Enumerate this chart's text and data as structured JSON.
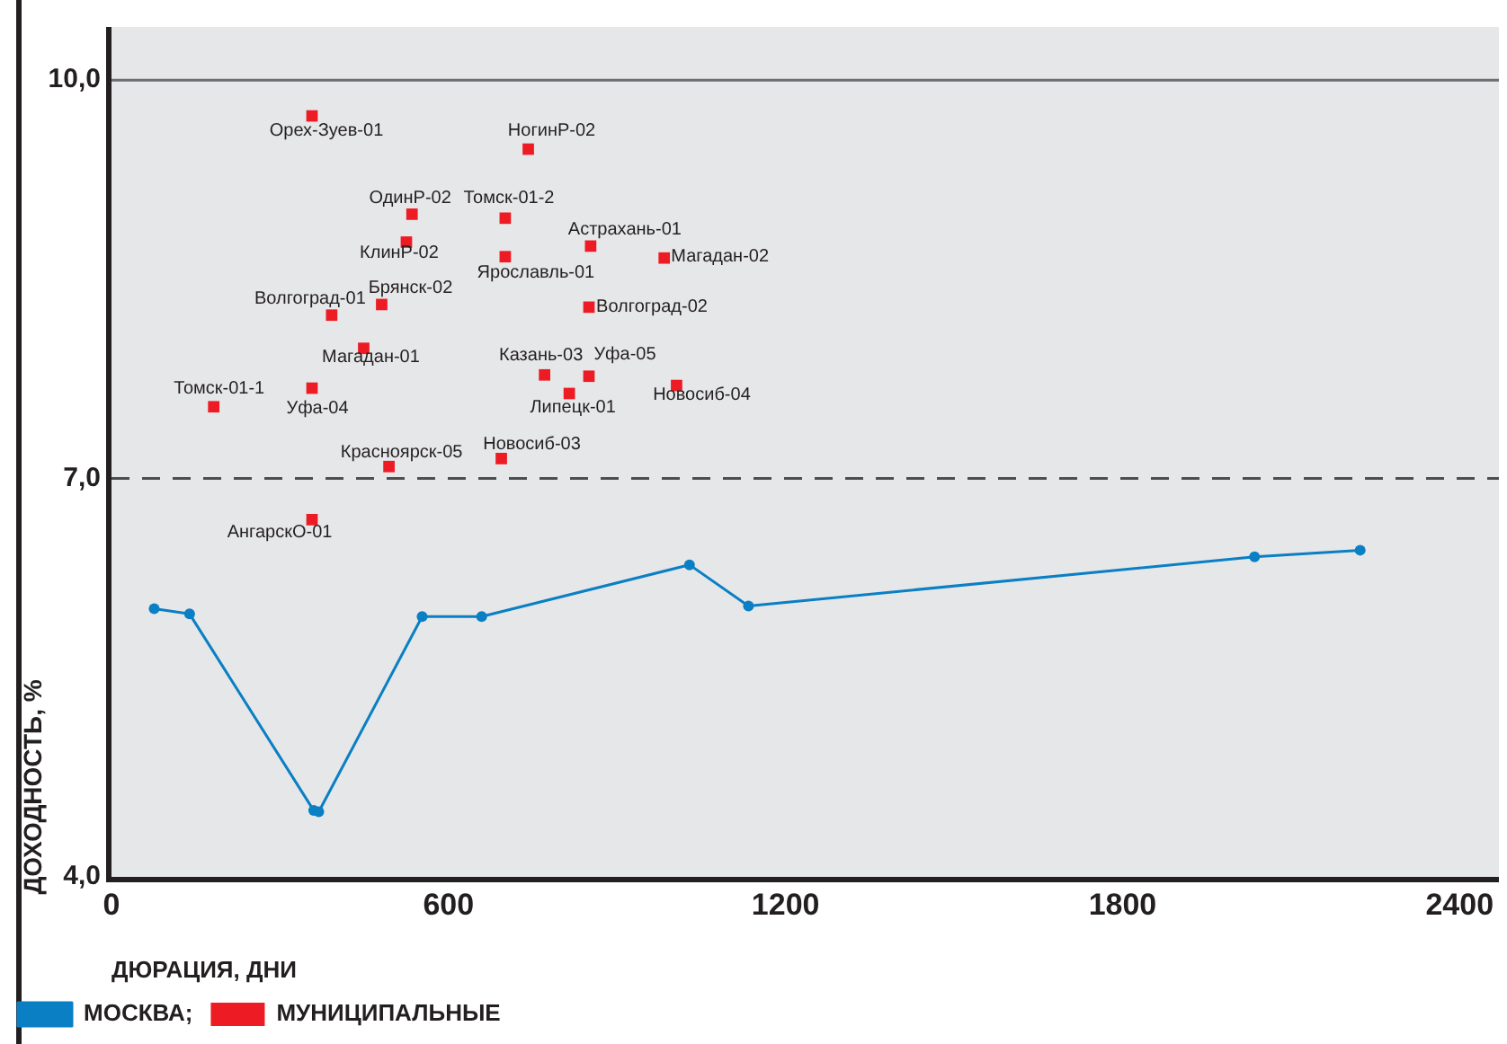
{
  "chart_data": {
    "type": "scatter",
    "xlabel": "ДЮРАЦИЯ, ДНИ",
    "ylabel": "ДОХОДНОСТЬ, %",
    "xlim": [
      0,
      2470
    ],
    "xticks": [
      0,
      600,
      1200,
      1800,
      2400
    ],
    "ylim": [
      4,
      10.4
    ],
    "yticks": [
      {
        "value": 4,
        "label": "4,0"
      },
      {
        "value": 7,
        "label": "7,0"
      },
      {
        "value": 10,
        "label": "10,0"
      }
    ],
    "grid": false,
    "legend": "bottom",
    "ref_lines": [
      {
        "axis": "y",
        "value": 10,
        "color": "#6d6e71",
        "line_style": "solid"
      },
      {
        "axis": "y",
        "value": 7,
        "color": "#4d4d4f",
        "line_style": "dashed"
      }
    ],
    "series": [
      {
        "name": "МОСКВА;",
        "type": "line",
        "color": "#0a7fc4",
        "marker": "circle",
        "line_style": "solid",
        "x": [
          76,
          139,
          360,
          369,
          553,
          659,
          1029,
          1134,
          2035,
          2223
        ],
        "values": [
          6.02,
          5.98,
          4.5,
          4.49,
          5.96,
          5.96,
          6.35,
          6.04,
          6.41,
          6.46
        ]
      },
      {
        "name": "МУНИЦИПАЛЬНЫЕ",
        "color": "#ed1c24",
        "marker": "square",
        "x": [
          357,
          742,
          535,
          701,
          525,
          853,
          701,
          984,
          850,
          481,
          392,
          449,
          771,
          850,
          1006,
          815,
          357,
          182,
          494,
          694,
          357
        ],
        "values": [
          9.73,
          9.48,
          8.99,
          8.96,
          8.78,
          8.75,
          8.67,
          8.66,
          8.29,
          8.31,
          8.23,
          7.98,
          7.78,
          7.77,
          7.7,
          7.64,
          7.68,
          7.54,
          7.09,
          7.15,
          6.69
        ]
      }
    ],
    "annotations": [
      {
        "text": "Орех-Зуев-01",
        "x": 357,
        "y": 9.73
      },
      {
        "text": "НогинР-02",
        "x": 742,
        "y": 9.48
      },
      {
        "text": "ОдинР-02",
        "x": 535,
        "y": 8.99
      },
      {
        "text": "Томск-01-2",
        "x": 701,
        "y": 8.96
      },
      {
        "text": "КлинР-02",
        "x": 525,
        "y": 8.78
      },
      {
        "text": "Астрахань-01",
        "x": 853,
        "y": 8.75
      },
      {
        "text": "Ярославль-01",
        "x": 701,
        "y": 8.67
      },
      {
        "text": "Магадан-02",
        "x": 984,
        "y": 8.66
      },
      {
        "text": "Волгоград-02",
        "x": 850,
        "y": 8.29
      },
      {
        "text": "Брянск-02",
        "x": 481,
        "y": 8.31
      },
      {
        "text": "Волгоград-01",
        "x": 392,
        "y": 8.23
      },
      {
        "text": "Магадан-01",
        "x": 449,
        "y": 7.98
      },
      {
        "text": "Казань-03",
        "x": 771,
        "y": 7.78
      },
      {
        "text": "Уфа-05",
        "x": 850,
        "y": 7.77
      },
      {
        "text": "Новосиб-04",
        "x": 1006,
        "y": 7.7
      },
      {
        "text": "Липецк-01",
        "x": 815,
        "y": 7.64
      },
      {
        "text": "Уфа-04",
        "x": 357,
        "y": 7.68
      },
      {
        "text": "Томск-01-1",
        "x": 182,
        "y": 7.54
      },
      {
        "text": "Красноярск-05",
        "x": 494,
        "y": 7.09
      },
      {
        "text": "Новосиб-03",
        "x": 694,
        "y": 7.15
      },
      {
        "text": "АнгарскО-01",
        "x": 357,
        "y": 6.69
      }
    ]
  }
}
